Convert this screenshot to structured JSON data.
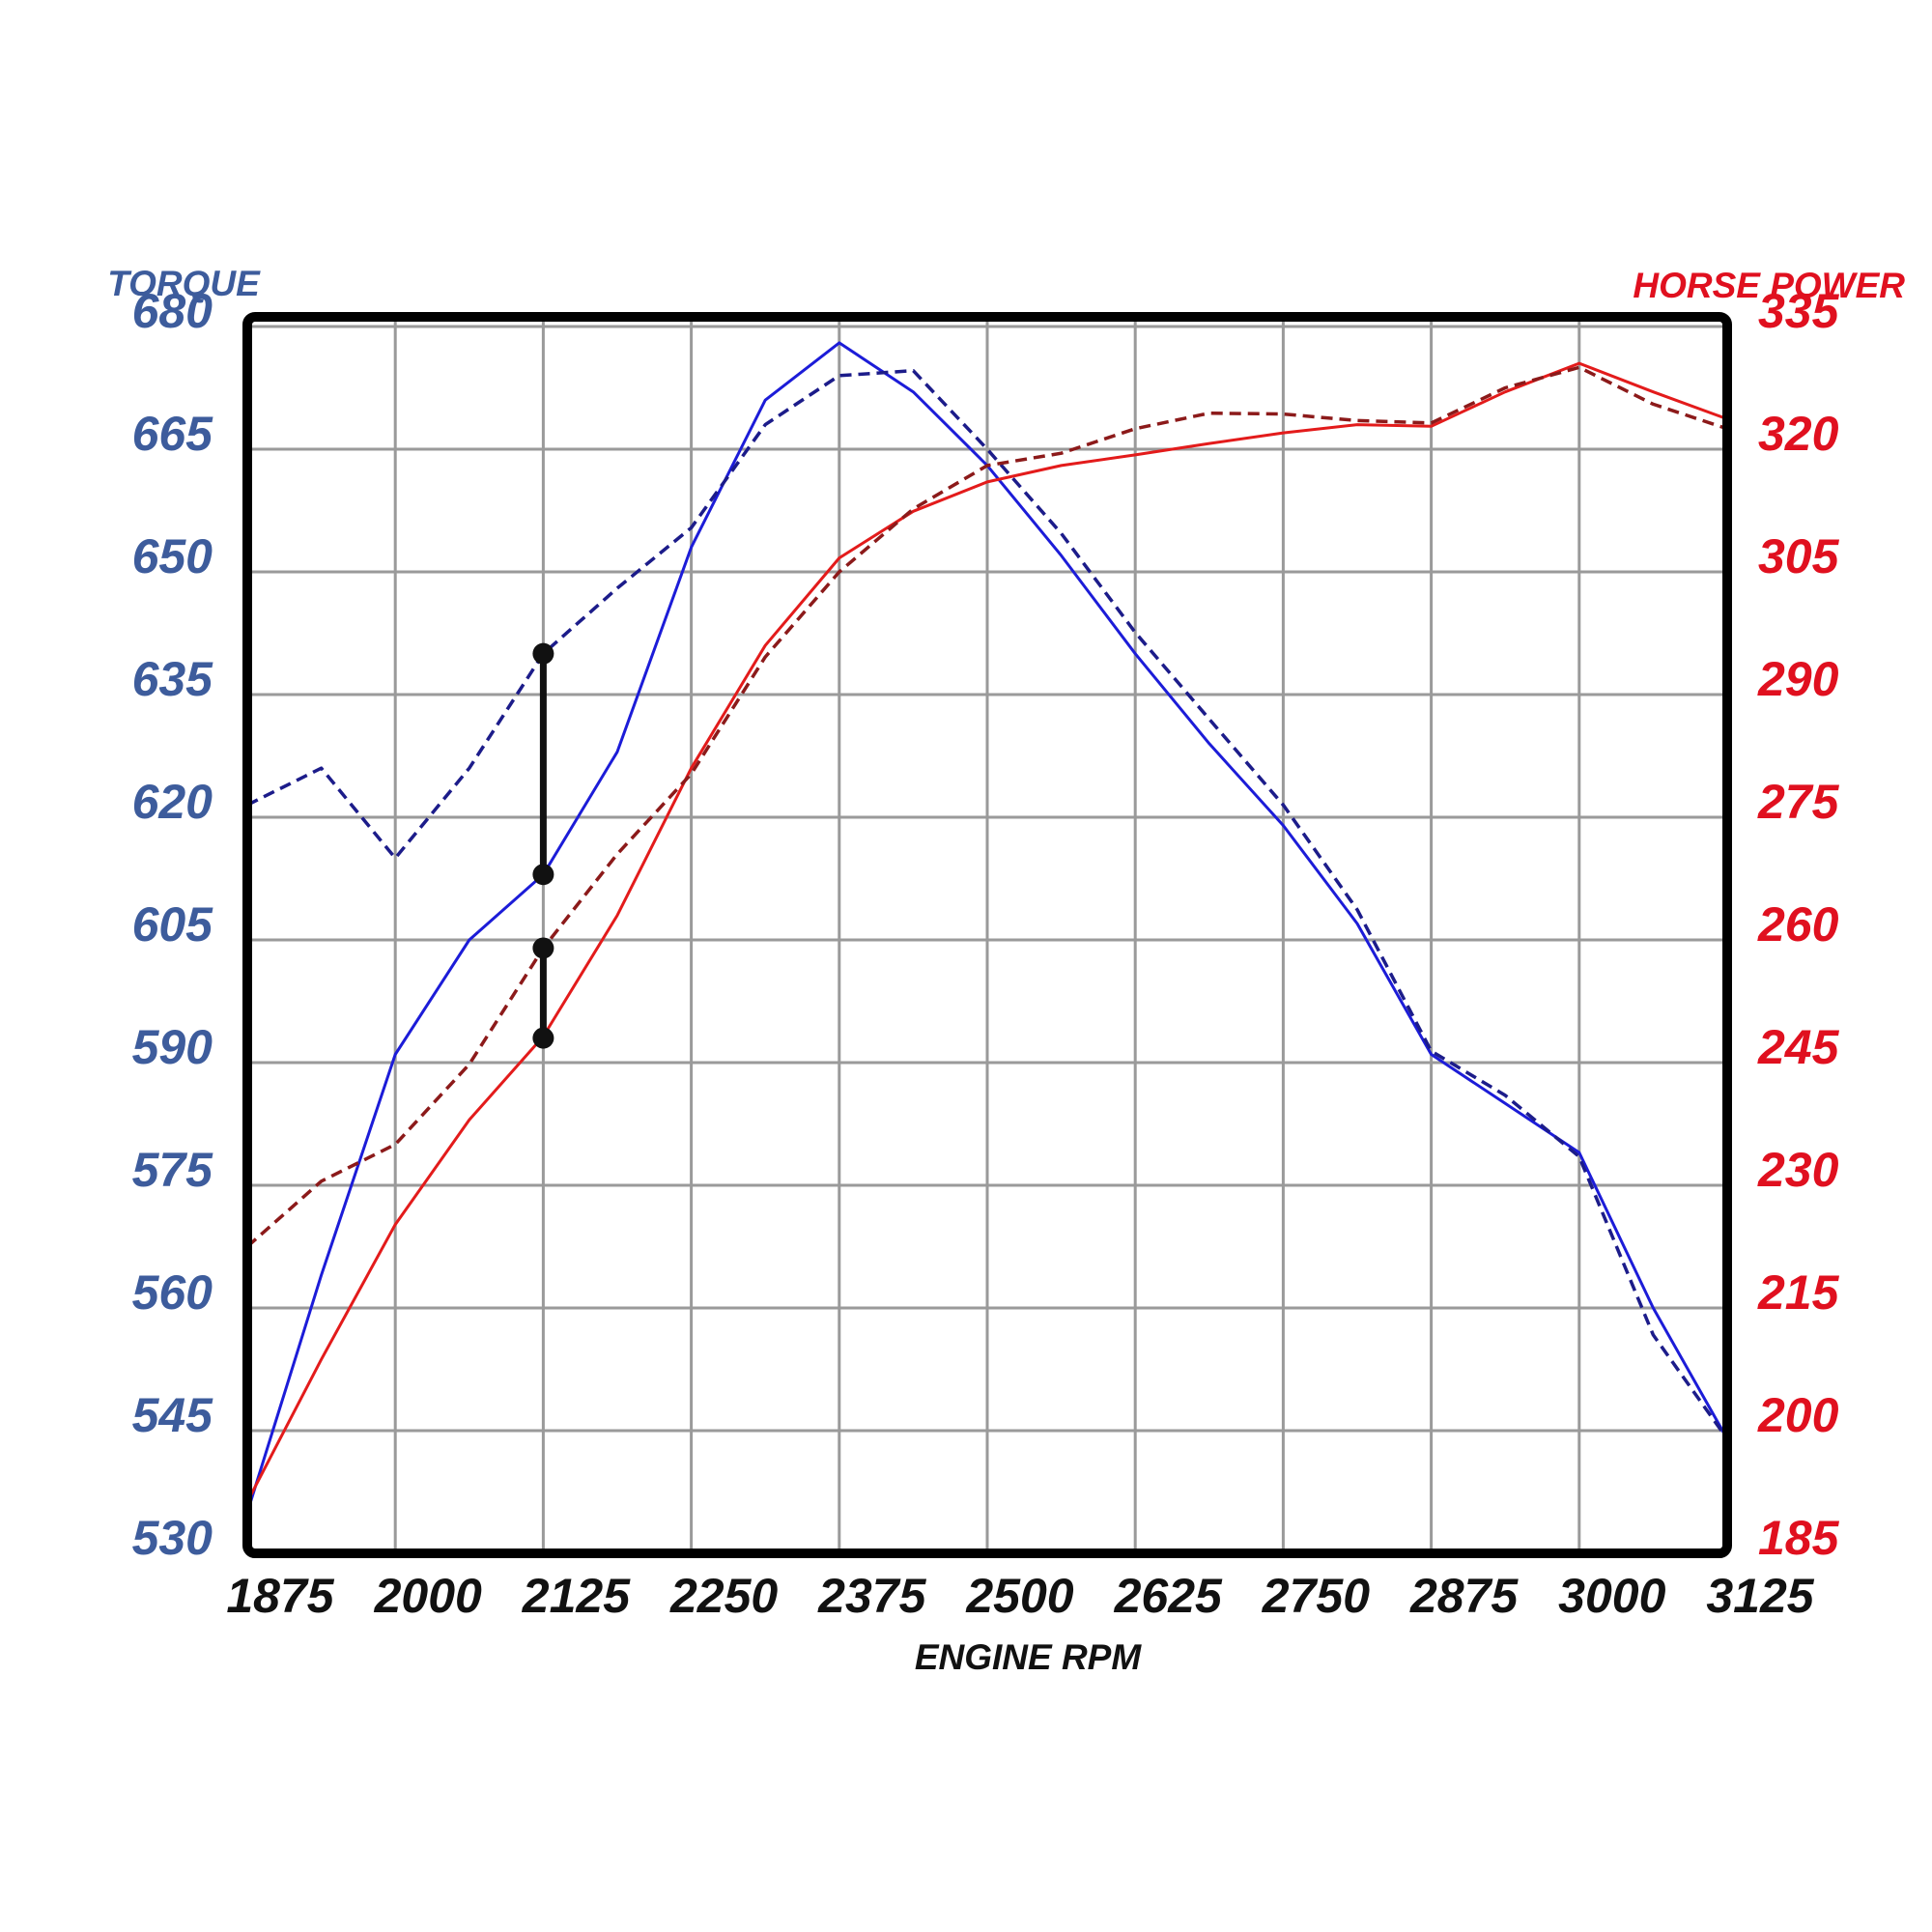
{
  "chart_data": {
    "type": "line",
    "x_label": "ENGINE RPM",
    "y_label": "TORQUE",
    "y2_label": "HORSE POWER",
    "x": [
      1875,
      1937.5,
      2000,
      2062.5,
      2125,
      2187.5,
      2250,
      2312.5,
      2375,
      2437.5,
      2500,
      2562.5,
      2625,
      2687.5,
      2750,
      2812.5,
      2875,
      2937.5,
      3000,
      3062.5,
      3125
    ],
    "series": [
      {
        "color": "#1c1cd8",
        "dashed": false,
        "axis": "y",
        "values": [
          535,
          564,
          591,
          605,
          613,
          628,
          653,
          671,
          678,
          672,
          663,
          652,
          640,
          629,
          619,
          607,
          591,
          585,
          579,
          560,
          544
        ]
      },
      {
        "color": "#1c1c8a",
        "dashed": true,
        "axis": "y",
        "values": [
          621.5,
          626,
          615,
          626,
          640,
          648,
          655.4,
          668,
          674,
          674.6,
          665,
          654.7,
          642.6,
          632,
          621.5,
          608.7,
          591.4,
          586,
          578.5,
          556.7,
          544
        ]
      },
      {
        "color": "#e31b1b",
        "dashed": false,
        "axis": "y2",
        "values": [
          191.3,
          208.7,
          225.2,
          238,
          248.2,
          263,
          281,
          296,
          306.7,
          312.4,
          316,
          318,
          319.3,
          320.7,
          322,
          323,
          322.8,
          327,
          330.5,
          327,
          323.7
        ]
      },
      {
        "color": "#8c1a1a",
        "dashed": true,
        "axis": "y2",
        "values": [
          222.5,
          230.5,
          235,
          244.8,
          259,
          270.5,
          280.3,
          294.6,
          305,
          312.7,
          318,
          319.5,
          322.5,
          324.4,
          324.3,
          323.5,
          323.2,
          327.5,
          330,
          325.5,
          322.5
        ]
      }
    ],
    "markers": [
      {
        "x": 2125,
        "values": [
          640,
          613
        ],
        "axis": "y"
      },
      {
        "x": 2125,
        "values": [
          259,
          248
        ],
        "axis": "y2"
      }
    ],
    "marker_color": "#111111",
    "xlim": [
      1875,
      3125
    ],
    "xticks": [
      1875,
      2000,
      2125,
      2250,
      2375,
      2500,
      2625,
      2750,
      2875,
      3000,
      3125
    ],
    "ylim": [
      530,
      680
    ],
    "yticks": [
      530,
      545,
      560,
      575,
      590,
      605,
      620,
      635,
      650,
      665,
      680
    ],
    "y2lim": [
      185,
      335
    ],
    "y2ticks": [
      185,
      200,
      215,
      230,
      245,
      260,
      275,
      290,
      305,
      320,
      335
    ],
    "y_color": "#3d5c9c",
    "y2_color": "#e0101f",
    "grid": true
  }
}
